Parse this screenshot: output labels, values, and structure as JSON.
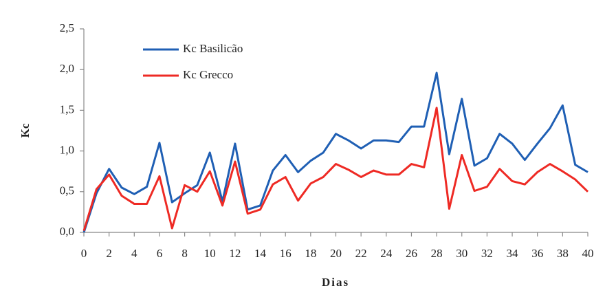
{
  "chart_data": {
    "type": "line",
    "xlabel": "Dias",
    "ylabel": "Kc",
    "x": [
      0,
      1,
      2,
      3,
      4,
      5,
      6,
      7,
      8,
      9,
      10,
      11,
      12,
      13,
      14,
      15,
      16,
      17,
      18,
      19,
      20,
      21,
      22,
      23,
      24,
      25,
      26,
      27,
      28,
      29,
      30,
      31,
      32,
      33,
      34,
      35,
      36,
      37,
      38,
      39,
      40
    ],
    "series": [
      {
        "name": "Kc Basilicão",
        "color": "#1f5fb4",
        "values": [
          0.0,
          0.48,
          0.78,
          0.55,
          0.47,
          0.56,
          1.1,
          0.37,
          0.48,
          0.58,
          0.98,
          0.38,
          1.09,
          0.28,
          0.33,
          0.76,
          0.95,
          0.74,
          0.88,
          0.98,
          1.21,
          1.13,
          1.03,
          1.13,
          1.13,
          1.11,
          1.3,
          1.3,
          1.96,
          0.96,
          1.64,
          0.82,
          0.91,
          1.21,
          1.09,
          0.89,
          1.09,
          1.28,
          1.56,
          0.83,
          0.74
        ]
      },
      {
        "name": "Kc Grecco",
        "color": "#ee2a24",
        "values": [
          0.02,
          0.53,
          0.71,
          0.45,
          0.35,
          0.35,
          0.69,
          0.05,
          0.58,
          0.5,
          0.75,
          0.33,
          0.87,
          0.23,
          0.28,
          0.59,
          0.68,
          0.39,
          0.6,
          0.68,
          0.84,
          0.77,
          0.68,
          0.76,
          0.71,
          0.71,
          0.84,
          0.8,
          1.53,
          0.29,
          0.95,
          0.51,
          0.56,
          0.78,
          0.63,
          0.59,
          0.74,
          0.84,
          0.75,
          0.65,
          0.5
        ]
      }
    ],
    "xlim": [
      0,
      40
    ],
    "xticks": [
      0,
      2,
      4,
      6,
      8,
      10,
      12,
      14,
      16,
      18,
      20,
      22,
      24,
      26,
      28,
      30,
      32,
      34,
      36,
      38,
      40
    ],
    "ylim": [
      0,
      2.5
    ],
    "yticks": [
      {
        "value": 0,
        "label": "0,0"
      },
      {
        "value": 0.5,
        "label": "0,5"
      },
      {
        "value": 1,
        "label": "1,0"
      },
      {
        "value": 1.5,
        "label": "1,5"
      },
      {
        "value": 2,
        "label": "2,0"
      },
      {
        "value": 2.5,
        "label": "2,5"
      }
    ],
    "grid": false,
    "legend": "upper-left"
  }
}
